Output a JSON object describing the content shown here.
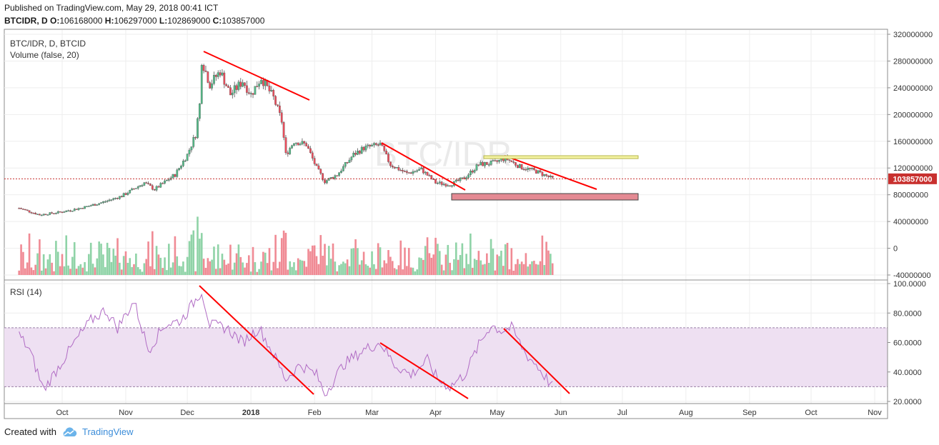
{
  "header": {
    "published": "Published on TradingView.com, May 29, 2018 00:41 ICT",
    "symbol": "BTCIDR, D",
    "o_label": "O:",
    "o_value": "106168000",
    "h_label": "H:",
    "h_value": "106297000",
    "l_label": "L:",
    "l_value": "102869000",
    "c_label": "C:",
    "c_value": "103857000"
  },
  "footer": {
    "created_with": "Created with",
    "brand": "TradingView"
  },
  "colors": {
    "up": "#53b987",
    "down": "#eb4d5c",
    "volume_up": "#8fd3a7",
    "volume_down": "#f08a94",
    "rsi": "#b06bc4",
    "rsi_band": "#eee0f2",
    "trendline": "#ff0000",
    "last_price": "#c8302e",
    "axis_text": "#333333"
  },
  "chart_data": [
    {
      "type": "candlestick",
      "title": "BTC/IDR, D, BTCID",
      "overlay_label": "Volume (false, 20)",
      "watermark": "BTC/IDR",
      "x_ticks": [
        "Oct",
        "Nov",
        "Dec",
        "2018",
        "Feb",
        "Mar",
        "Apr",
        "May",
        "Jun",
        "Jul",
        "Aug",
        "Sep",
        "Oct",
        "Nov"
      ],
      "y_ticks": [
        "320000000",
        "280000000",
        "240000000",
        "200000000",
        "160000000",
        "120000000",
        "80000000",
        "40000000",
        "0",
        "-40000000"
      ],
      "ylim": [
        -40000000,
        320000000
      ],
      "last_price": 103857000,
      "last_price_label": "103857000",
      "price_path": [
        [
          "2017-09-10",
          60000000
        ],
        [
          "2017-09-20",
          50000000
        ],
        [
          "2017-09-30",
          54000000
        ],
        [
          "2017-10-10",
          60000000
        ],
        [
          "2017-10-20",
          68000000
        ],
        [
          "2017-10-30",
          78000000
        ],
        [
          "2017-11-10",
          98000000
        ],
        [
          "2017-11-15",
          88000000
        ],
        [
          "2017-11-25",
          110000000
        ],
        [
          "2017-12-01",
          140000000
        ],
        [
          "2017-12-05",
          170000000
        ],
        [
          "2017-12-07",
          215000000
        ],
        [
          "2017-12-08",
          282000000
        ],
        [
          "2017-12-12",
          245000000
        ],
        [
          "2017-12-17",
          265000000
        ],
        [
          "2017-12-22",
          230000000
        ],
        [
          "2017-12-28",
          250000000
        ],
        [
          "2018-01-01",
          230000000
        ],
        [
          "2018-01-06",
          255000000
        ],
        [
          "2018-01-12",
          225000000
        ],
        [
          "2018-01-16",
          190000000
        ],
        [
          "2018-01-18",
          140000000
        ],
        [
          "2018-01-22",
          160000000
        ],
        [
          "2018-01-28",
          155000000
        ],
        [
          "2018-02-02",
          120000000
        ],
        [
          "2018-02-06",
          100000000
        ],
        [
          "2018-02-12",
          110000000
        ],
        [
          "2018-02-20",
          140000000
        ],
        [
          "2018-02-25",
          150000000
        ],
        [
          "2018-03-05",
          155000000
        ],
        [
          "2018-03-10",
          125000000
        ],
        [
          "2018-03-18",
          112000000
        ],
        [
          "2018-03-25",
          118000000
        ],
        [
          "2018-04-01",
          98000000
        ],
        [
          "2018-04-08",
          95000000
        ],
        [
          "2018-04-15",
          105000000
        ],
        [
          "2018-04-22",
          125000000
        ],
        [
          "2018-04-30",
          128000000
        ],
        [
          "2018-05-05",
          135000000
        ],
        [
          "2018-05-12",
          122000000
        ],
        [
          "2018-05-20",
          115000000
        ],
        [
          "2018-05-28",
          104000000
        ]
      ],
      "rsi": {
        "label": "RSI (14)",
        "y_ticks": [
          "100.0000",
          "80.0000",
          "60.0000",
          "40.0000",
          "20.0000"
        ],
        "ylim": [
          20,
          100
        ],
        "band": [
          30,
          70
        ],
        "path": [
          [
            "2017-09-10",
            65
          ],
          [
            "2017-09-15",
            55
          ],
          [
            "2017-09-22",
            28
          ],
          [
            "2017-09-30",
            45
          ],
          [
            "2017-10-08",
            62
          ],
          [
            "2017-10-15",
            75
          ],
          [
            "2017-10-22",
            82
          ],
          [
            "2017-10-28",
            70
          ],
          [
            "2017-11-05",
            88
          ],
          [
            "2017-11-12",
            55
          ],
          [
            "2017-11-20",
            72
          ],
          [
            "2017-11-28",
            75
          ],
          [
            "2017-12-08",
            95
          ],
          [
            "2017-12-12",
            72
          ],
          [
            "2017-12-20",
            70
          ],
          [
            "2017-12-28",
            60
          ],
          [
            "2018-01-05",
            70
          ],
          [
            "2018-01-12",
            52
          ],
          [
            "2018-01-18",
            35
          ],
          [
            "2018-01-25",
            45
          ],
          [
            "2018-02-02",
            38
          ],
          [
            "2018-02-06",
            25
          ],
          [
            "2018-02-15",
            45
          ],
          [
            "2018-02-25",
            55
          ],
          [
            "2018-03-05",
            60
          ],
          [
            "2018-03-12",
            45
          ],
          [
            "2018-03-20",
            38
          ],
          [
            "2018-03-28",
            48
          ],
          [
            "2018-04-02",
            35
          ],
          [
            "2018-04-08",
            30
          ],
          [
            "2018-04-15",
            38
          ],
          [
            "2018-04-22",
            58
          ],
          [
            "2018-04-28",
            72
          ],
          [
            "2018-05-03",
            68
          ],
          [
            "2018-05-08",
            70
          ],
          [
            "2018-05-15",
            52
          ],
          [
            "2018-05-20",
            45
          ],
          [
            "2018-05-28",
            30
          ]
        ]
      }
    }
  ]
}
